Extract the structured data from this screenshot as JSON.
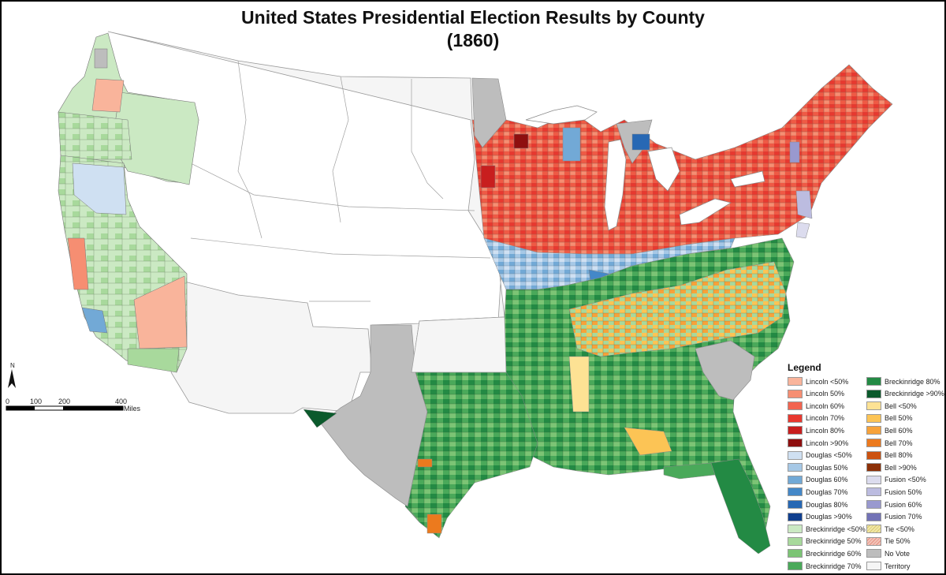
{
  "title": {
    "line1": "United States Presidential Election Results by County",
    "line2": "(1860)"
  },
  "legend": {
    "title": "Legend",
    "items": [
      {
        "label": "Lincoln <50%",
        "color": "#f9b49b"
      },
      {
        "label": "Lincoln 50%",
        "color": "#f68e72"
      },
      {
        "label": "Lincoln 60%",
        "color": "#f26450"
      },
      {
        "label": "Lincoln 70%",
        "color": "#e8382f"
      },
      {
        "label": "Lincoln 80%",
        "color": "#c81e1e"
      },
      {
        "label": "Lincoln >90%",
        "color": "#8e0f0f"
      },
      {
        "label": "Douglas <50%",
        "color": "#cfe0f2"
      },
      {
        "label": "Douglas 50%",
        "color": "#a6c8e6"
      },
      {
        "label": "Douglas 60%",
        "color": "#72a9d6"
      },
      {
        "label": "Douglas 70%",
        "color": "#4488c8"
      },
      {
        "label": "Douglas 80%",
        "color": "#2768b4"
      },
      {
        "label": "Douglas >90%",
        "color": "#103f8f"
      },
      {
        "label": "Breckinridge <50%",
        "color": "#cbe9c3"
      },
      {
        "label": "Breckinridge 50%",
        "color": "#a8d99c"
      },
      {
        "label": "Breckinridge 60%",
        "color": "#7cc475"
      },
      {
        "label": "Breckinridge 70%",
        "color": "#4aa95a"
      },
      {
        "label": "Breckinridge 80%",
        "color": "#238a44"
      },
      {
        "label": "Breckinridge >90%",
        "color": "#0b5a2c"
      },
      {
        "label": "Bell <50%",
        "color": "#fde294"
      },
      {
        "label": "Bell 50%",
        "color": "#fcc455"
      },
      {
        "label": "Bell 60%",
        "color": "#f7a23a"
      },
      {
        "label": "Bell 70%",
        "color": "#ec7a1e"
      },
      {
        "label": "Bell 80%",
        "color": "#cc5210"
      },
      {
        "label": "Bell >90%",
        "color": "#8c3007"
      },
      {
        "label": "Fusion <50%",
        "color": "#dcdcee"
      },
      {
        "label": "Fusion 50%",
        "color": "#bcbce0"
      },
      {
        "label": "Fusion 60%",
        "color": "#9999cf"
      },
      {
        "label": "Fusion 70%",
        "color": "#7272b6"
      },
      {
        "label": "Tie <50%",
        "color": "#f1e7a6",
        "pattern": "hatch-yellow"
      },
      {
        "label": "Tie 50%",
        "color": "#f3c3b8",
        "pattern": "hatch-red"
      },
      {
        "label": "No Vote",
        "color": "#bdbdbd"
      },
      {
        "label": "Territory",
        "color": "#f5f5f5"
      }
    ]
  },
  "scale": {
    "ticks": [
      "0",
      "100",
      "200",
      "400"
    ],
    "unit": "Miles"
  },
  "north_arrow": {
    "label": "N",
    "icon": "north-arrow-icon"
  }
}
